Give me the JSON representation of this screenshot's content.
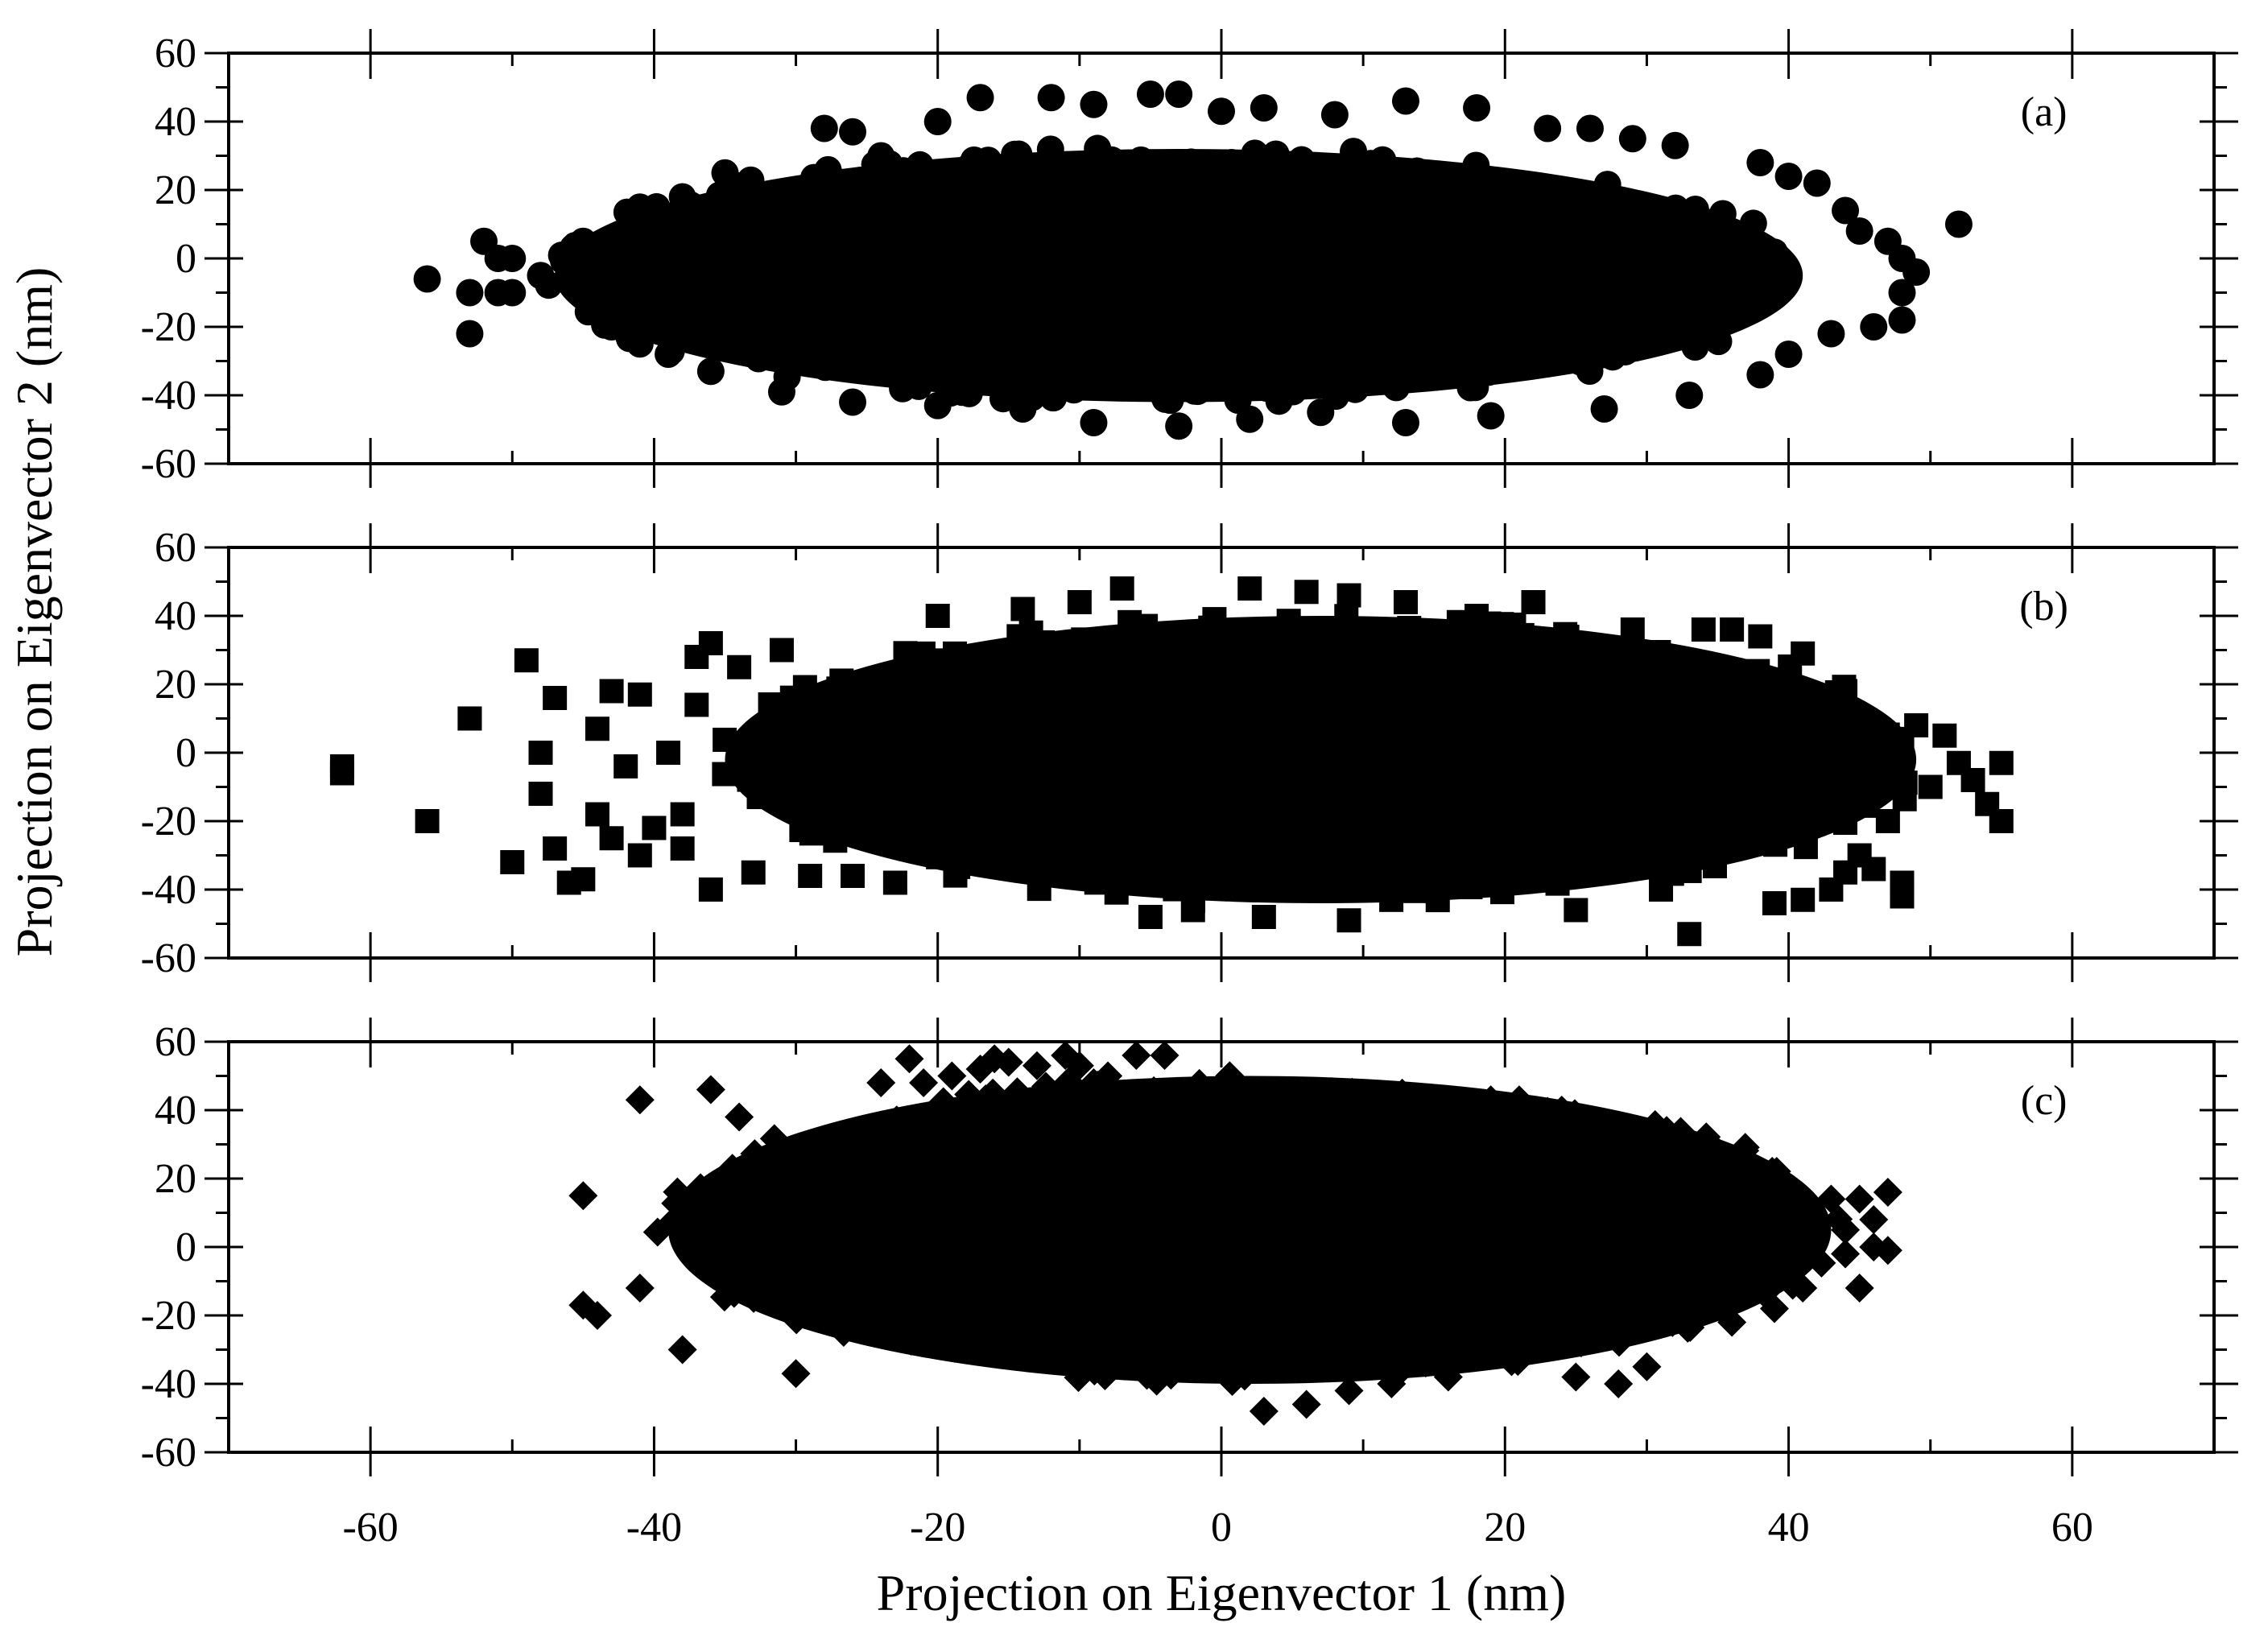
{
  "chart_data": {
    "type": "scatter",
    "xlabel": "Projection on Eigenvector 1 (nm)",
    "ylabel": "Projection on Eigenvector 2 (nm)",
    "xlim": [
      -70,
      70
    ],
    "ylim": [
      -60,
      60
    ],
    "x_ticks": [
      "-60",
      "-40",
      "-20",
      "0",
      "20",
      "40",
      "60"
    ],
    "y_ticks": [
      "60",
      "40",
      "20",
      "0",
      "-20",
      "-40",
      "-60"
    ],
    "grid": false,
    "marker_color": "#000000",
    "panels": [
      {
        "label": "(a)",
        "marker": "circle",
        "dense_region": {
          "center": [
            -3,
            -5
          ],
          "half_width": [
            44,
            37
          ]
        },
        "points": [
          [
            -56,
            -6
          ],
          [
            -53,
            -10
          ],
          [
            -53,
            -22
          ],
          [
            -52,
            5
          ],
          [
            -51,
            -10
          ],
          [
            -51,
            0
          ],
          [
            -50,
            -10
          ],
          [
            -50,
            0
          ],
          [
            -48,
            -5
          ],
          [
            -46,
            -6
          ],
          [
            -45,
            5
          ],
          [
            -44,
            -10
          ],
          [
            -43,
            0
          ],
          [
            -43,
            -20
          ],
          [
            -41,
            15
          ],
          [
            -41,
            -25
          ],
          [
            -38,
            18
          ],
          [
            -35,
            25
          ],
          [
            -28,
            38
          ],
          [
            -26,
            37
          ],
          [
            -24,
            30
          ],
          [
            -20,
            40
          ],
          [
            -17,
            47
          ],
          [
            -12,
            47
          ],
          [
            -9,
            45
          ],
          [
            -5,
            48
          ],
          [
            -3,
            48
          ],
          [
            0,
            43
          ],
          [
            3,
            44
          ],
          [
            8,
            42
          ],
          [
            13,
            46
          ],
          [
            18,
            44
          ],
          [
            23,
            38
          ],
          [
            26,
            38
          ],
          [
            29,
            35
          ],
          [
            32,
            33
          ],
          [
            38,
            28
          ],
          [
            40,
            24
          ],
          [
            42,
            22
          ],
          [
            44,
            14
          ],
          [
            45,
            8
          ],
          [
            47,
            5
          ],
          [
            48,
            0
          ],
          [
            49,
            -4
          ],
          [
            48,
            -10
          ],
          [
            48,
            -18
          ],
          [
            46,
            -20
          ],
          [
            43,
            -22
          ],
          [
            40,
            -28
          ],
          [
            38,
            -34
          ],
          [
            33,
            -40
          ],
          [
            27,
            -44
          ],
          [
            19,
            -46
          ],
          [
            13,
            -48
          ],
          [
            7,
            -45
          ],
          [
            2,
            -47
          ],
          [
            -3,
            -49
          ],
          [
            -9,
            -48
          ],
          [
            -14,
            -44
          ],
          [
            -20,
            -43
          ],
          [
            -26,
            -42
          ],
          [
            -31,
            -39
          ],
          [
            -36,
            -33
          ],
          [
            -39,
            -28
          ],
          [
            52,
            10
          ]
        ]
      },
      {
        "label": "(b)",
        "marker": "square",
        "dense_region": {
          "center": [
            7,
            -2
          ],
          "half_width": [
            42,
            42
          ]
        },
        "points": [
          [
            -62,
            -4
          ],
          [
            -62,
            -6
          ],
          [
            -56,
            -20
          ],
          [
            -53,
            10
          ],
          [
            -53,
            10
          ],
          [
            -50,
            -32
          ],
          [
            -49,
            27
          ],
          [
            -48,
            0
          ],
          [
            -48,
            -12
          ],
          [
            -47,
            16
          ],
          [
            -47,
            -28
          ],
          [
            -46,
            -38
          ],
          [
            -45,
            -37
          ],
          [
            -44,
            -18
          ],
          [
            -44,
            7
          ],
          [
            -43,
            18
          ],
          [
            -43,
            -25
          ],
          [
            -42,
            -4
          ],
          [
            -41,
            17
          ],
          [
            -41,
            -30
          ],
          [
            -40,
            -22
          ],
          [
            -39,
            0
          ],
          [
            -38,
            -18
          ],
          [
            -38,
            -28
          ],
          [
            -37,
            14
          ],
          [
            -37,
            28
          ],
          [
            -36,
            32
          ],
          [
            -36,
            -40
          ],
          [
            -34,
            25
          ],
          [
            -33,
            -35
          ],
          [
            -31,
            30
          ],
          [
            -29,
            -36
          ],
          [
            -26,
            -36
          ],
          [
            -23,
            -38
          ],
          [
            -20,
            40
          ],
          [
            -14,
            42
          ],
          [
            -10,
            44
          ],
          [
            -7,
            48
          ],
          [
            -5,
            -48
          ],
          [
            -2,
            -46
          ],
          [
            2,
            48
          ],
          [
            6,
            47
          ],
          [
            9,
            46
          ],
          [
            13,
            44
          ],
          [
            18,
            40
          ],
          [
            22,
            44
          ],
          [
            25,
            -46
          ],
          [
            29,
            36
          ],
          [
            31,
            -40
          ],
          [
            34,
            36
          ],
          [
            36,
            36
          ],
          [
            38,
            34
          ],
          [
            39,
            -44
          ],
          [
            41,
            29
          ],
          [
            41,
            -43
          ],
          [
            43,
            -40
          ],
          [
            44,
            18
          ],
          [
            44,
            -35
          ],
          [
            45,
            -30
          ],
          [
            46,
            -34
          ],
          [
            47,
            0
          ],
          [
            47,
            -20
          ],
          [
            48,
            -42
          ],
          [
            48,
            -38
          ],
          [
            49,
            8
          ],
          [
            50,
            -10
          ],
          [
            51,
            5
          ],
          [
            52,
            -3
          ],
          [
            53,
            -8
          ],
          [
            54,
            -15
          ],
          [
            55,
            -3
          ],
          [
            55,
            -20
          ],
          [
            33,
            -53
          ],
          [
            9,
            -49
          ],
          [
            3,
            -48
          ]
        ]
      },
      {
        "label": "(c)",
        "marker": "diamond",
        "dense_region": {
          "center": [
            2,
            5
          ],
          "half_width": [
            41,
            45
          ]
        },
        "points": [
          [
            -45,
            15
          ],
          [
            -45,
            -17
          ],
          [
            -44,
            -20
          ],
          [
            -41,
            43
          ],
          [
            -41,
            -12
          ],
          [
            -38,
            -30
          ],
          [
            -36,
            46
          ],
          [
            -34,
            38
          ],
          [
            -30,
            -37
          ],
          [
            -24,
            48
          ],
          [
            -22,
            55
          ],
          [
            -21,
            48
          ],
          [
            -19,
            50
          ],
          [
            -17,
            52
          ],
          [
            -16,
            55
          ],
          [
            -15,
            54
          ],
          [
            -13,
            53
          ],
          [
            -11,
            56
          ],
          [
            -10,
            53
          ],
          [
            -9,
            48
          ],
          [
            -8,
            50
          ],
          [
            -6,
            56
          ],
          [
            -4,
            56
          ],
          [
            3,
            -48
          ],
          [
            6,
            -46
          ],
          [
            9,
            -42
          ],
          [
            12,
            -40
          ],
          [
            16,
            -38
          ],
          [
            19,
            43
          ],
          [
            21,
            43
          ],
          [
            24,
            40
          ],
          [
            25,
            -38
          ],
          [
            28,
            -40
          ],
          [
            30,
            -35
          ],
          [
            34,
            26
          ],
          [
            36,
            -22
          ],
          [
            38,
            22
          ],
          [
            39,
            -18
          ],
          [
            40,
            12
          ],
          [
            41,
            -12
          ],
          [
            43,
            14
          ],
          [
            44,
            5
          ],
          [
            44,
            -2
          ],
          [
            45,
            14
          ],
          [
            45,
            -12
          ],
          [
            46,
            8
          ],
          [
            46,
            0
          ],
          [
            47,
            16
          ],
          [
            47,
            -1
          ]
        ]
      }
    ]
  }
}
